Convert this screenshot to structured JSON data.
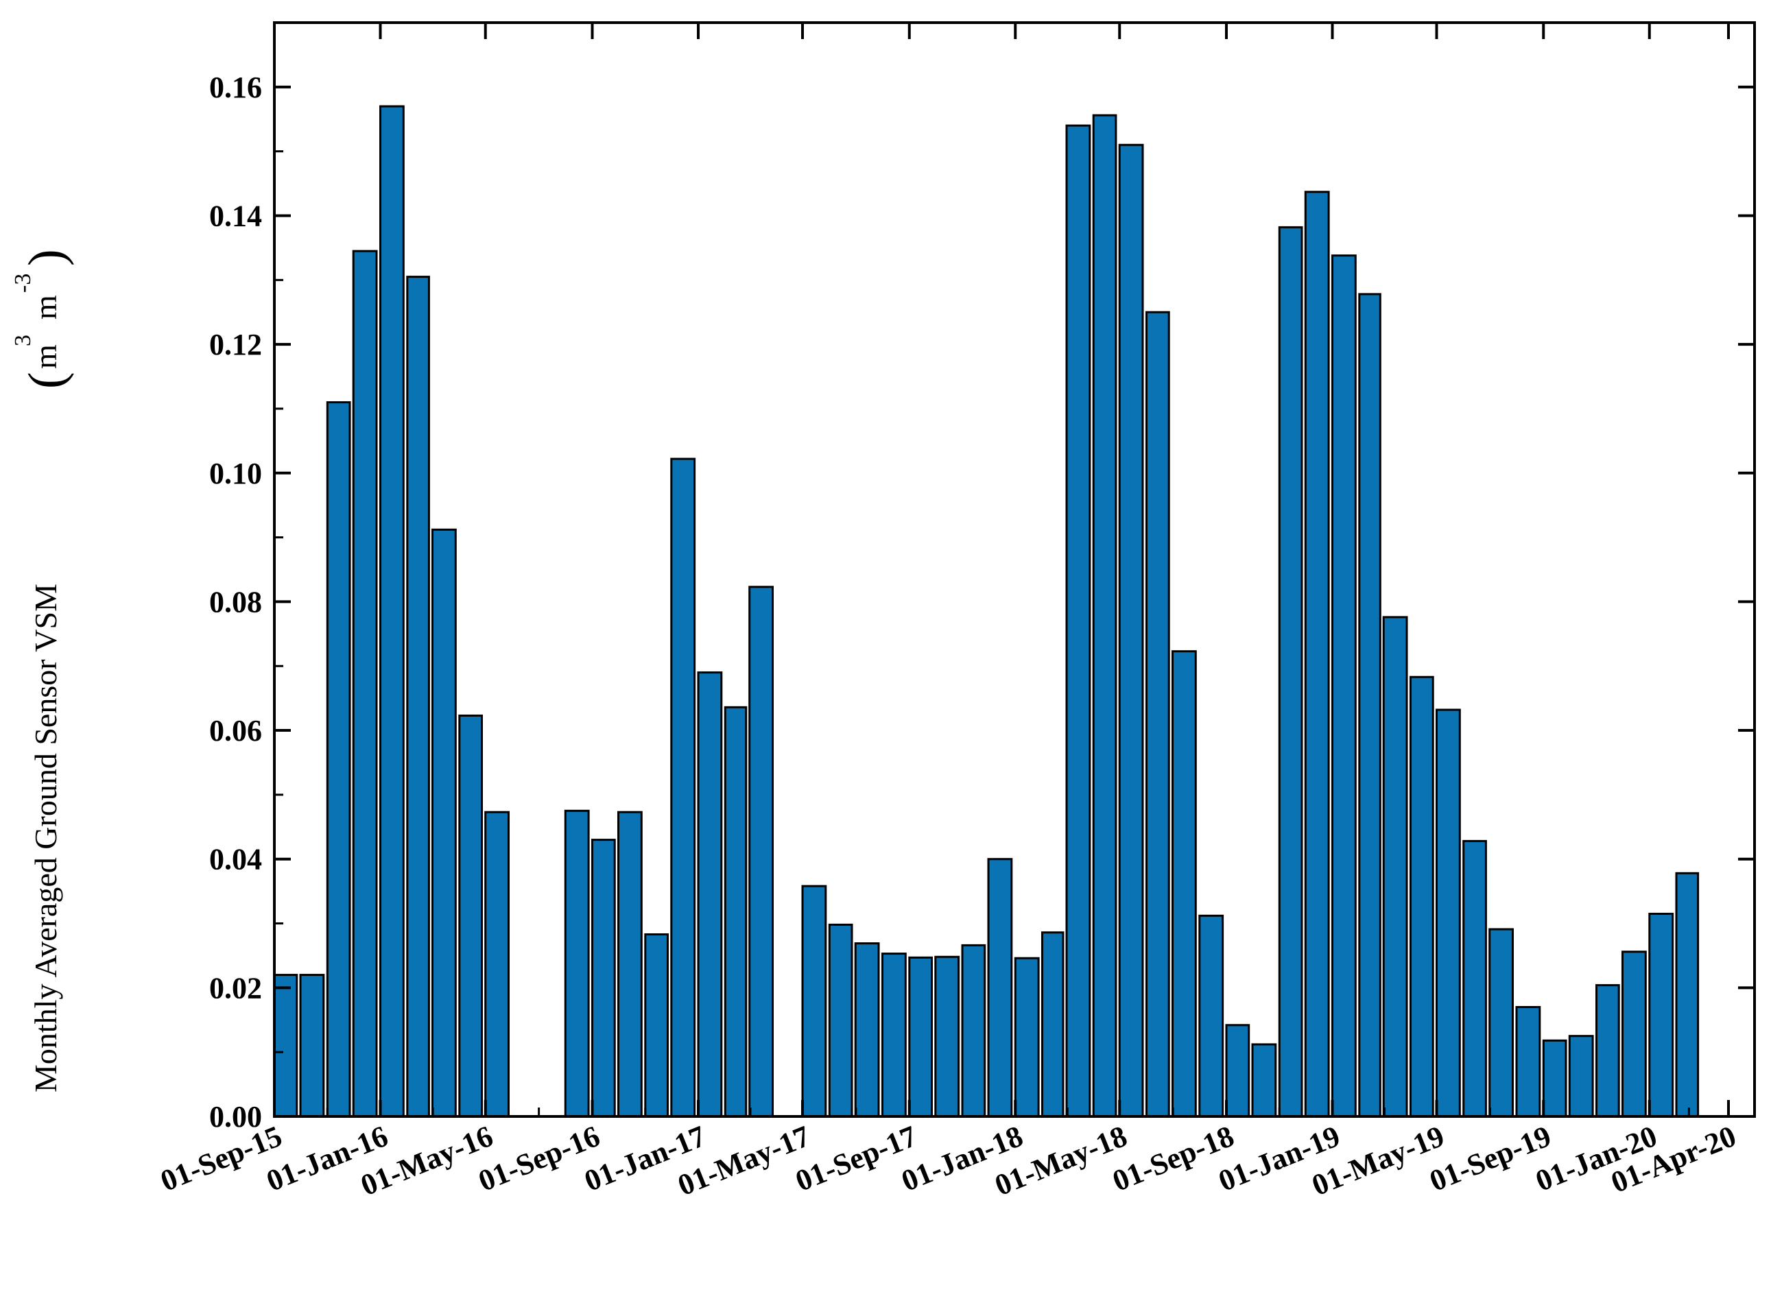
{
  "colors": {
    "bar_fill": "#0a73b4",
    "bar_stroke": "#000000",
    "axis": "#000000"
  },
  "chart_data": {
    "type": "bar",
    "ylabel": {
      "prefix": "Monthly Averaged Ground Sensor VSM",
      "open_paren": "(",
      "close_paren": ")",
      "m1": "m",
      "exp1": "3",
      "m2": "m",
      "exp2": "-3"
    },
    "xlabel": "",
    "ylim": [
      0,
      0.17
    ],
    "yticks": [
      {
        "value": 0.0,
        "label": "0.00"
      },
      {
        "value": 0.02,
        "label": "0.02"
      },
      {
        "value": 0.04,
        "label": "0.04"
      },
      {
        "value": 0.06,
        "label": "0.06"
      },
      {
        "value": 0.08,
        "label": "0.08"
      },
      {
        "value": 0.1,
        "label": "0.10"
      },
      {
        "value": 0.12,
        "label": "0.12"
      },
      {
        "value": 0.14,
        "label": "0.14"
      },
      {
        "value": 0.16,
        "label": "0.16"
      }
    ],
    "xlim": [
      "2015-09-01",
      "2020-05-01"
    ],
    "xticks": [
      {
        "date": "2015-09-01",
        "label": "01-Sep-15"
      },
      {
        "date": "2016-01-01",
        "label": "01-Jan-16"
      },
      {
        "date": "2016-05-01",
        "label": "01-May-16"
      },
      {
        "date": "2016-09-01",
        "label": "01-Sep-16"
      },
      {
        "date": "2017-01-01",
        "label": "01-Jan-17"
      },
      {
        "date": "2017-05-01",
        "label": "01-May-17"
      },
      {
        "date": "2017-09-01",
        "label": "01-Sep-17"
      },
      {
        "date": "2018-01-01",
        "label": "01-Jan-18"
      },
      {
        "date": "2018-05-01",
        "label": "01-May-18"
      },
      {
        "date": "2018-09-01",
        "label": "01-Sep-18"
      },
      {
        "date": "2019-01-01",
        "label": "01-Jan-19"
      },
      {
        "date": "2019-05-01",
        "label": "01-May-19"
      },
      {
        "date": "2019-09-01",
        "label": "01-Sep-19"
      },
      {
        "date": "2020-01-01",
        "label": "01-Jan-20"
      },
      {
        "date": "2020-04-01",
        "label": "01-Apr-20"
      }
    ],
    "x": [
      "2015-09",
      "2015-10",
      "2015-11",
      "2015-12",
      "2016-01",
      "2016-02",
      "2016-03",
      "2016-04",
      "2016-05",
      "2016-06",
      "2016-07",
      "2016-08",
      "2016-09",
      "2016-10",
      "2016-11",
      "2016-12",
      "2017-01",
      "2017-02",
      "2017-03",
      "2017-04",
      "2017-05",
      "2017-06",
      "2017-07",
      "2017-08",
      "2017-09",
      "2017-10",
      "2017-11",
      "2017-12",
      "2018-01",
      "2018-02",
      "2018-03",
      "2018-04",
      "2018-05",
      "2018-06",
      "2018-07",
      "2018-08",
      "2018-09",
      "2018-10",
      "2018-11",
      "2018-12",
      "2019-01",
      "2019-02",
      "2019-03",
      "2019-04",
      "2019-05",
      "2019-06",
      "2019-07",
      "2019-08",
      "2019-09",
      "2019-10",
      "2019-11",
      "2019-12",
      "2020-01",
      "2020-02",
      "2020-03"
    ],
    "values": [
      0.022,
      0.022,
      0.111,
      0.1345,
      0.157,
      0.1305,
      0.0912,
      0.0623,
      0.0473,
      null,
      null,
      0.0475,
      0.043,
      0.0473,
      0.0283,
      0.1022,
      0.069,
      0.0636,
      0.0823,
      null,
      0.0358,
      0.0298,
      0.0269,
      0.0253,
      0.0247,
      0.0248,
      0.0266,
      0.04,
      0.0246,
      0.0286,
      0.154,
      0.1556,
      0.151,
      0.125,
      0.0723,
      0.0312,
      0.0142,
      0.0112,
      0.1382,
      0.1437,
      0.1338,
      0.1278,
      0.0776,
      0.0683,
      0.0632,
      0.0428,
      0.0291,
      0.017,
      0.0118,
      0.0125,
      0.0204,
      0.0256,
      0.0315,
      0.0378,
      null
    ]
  }
}
